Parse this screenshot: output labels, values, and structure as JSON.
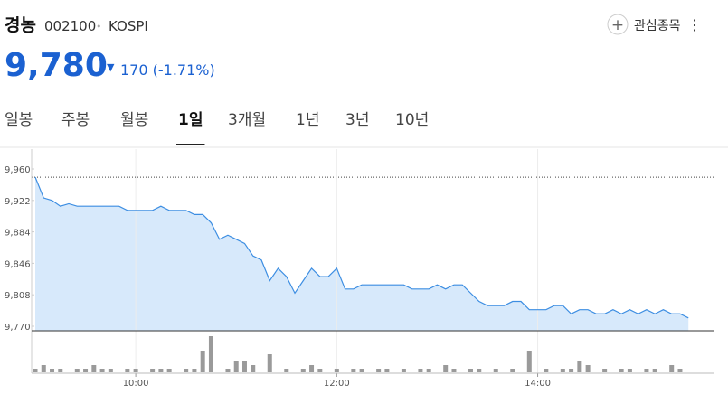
{
  "header": {
    "name": "경농",
    "code": "002100",
    "separator": "•",
    "market": "KOSPI",
    "watch_icon": "+",
    "watch_button": "관심종목",
    "menu_icon": "⋮",
    "price": "9,780",
    "change_arrow": "▼",
    "change": "170 (-1.71%)"
  },
  "tabs": [
    "일봉",
    "주봉",
    "월봉",
    "1일",
    "3개월",
    "1년",
    "3년",
    "10년"
  ],
  "selected_tab": 3,
  "chart_data": {
    "type": "line",
    "x": [
      "09:00",
      "09:05",
      "09:10",
      "09:15",
      "09:20",
      "09:25",
      "09:30",
      "09:35",
      "09:40",
      "09:45",
      "09:50",
      "09:55",
      "10:00",
      "10:05",
      "10:10",
      "10:15",
      "10:20",
      "10:25",
      "10:30",
      "10:35",
      "10:40",
      "10:45",
      "10:50",
      "10:55",
      "11:00",
      "11:05",
      "11:10",
      "11:15",
      "11:20",
      "11:25",
      "11:30",
      "11:35",
      "11:40",
      "11:45",
      "11:50",
      "11:55",
      "12:00",
      "12:05",
      "12:10",
      "12:15",
      "12:20",
      "12:25",
      "12:30",
      "12:35",
      "12:40",
      "12:45",
      "12:50",
      "12:55",
      "13:00",
      "13:05",
      "13:10",
      "13:15",
      "13:20",
      "13:25",
      "13:30",
      "13:35",
      "13:40",
      "13:45",
      "13:50",
      "13:55",
      "14:00",
      "14:05",
      "14:10",
      "14:15",
      "14:20",
      "14:25",
      "14:30",
      "14:35",
      "14:40",
      "14:45",
      "14:50",
      "14:55",
      "15:00",
      "15:05",
      "15:10",
      "15:15",
      "15:20",
      "15:25",
      "15:30"
    ],
    "series": [
      {
        "color": "#3d8ee2",
        "fill": "#d7e9fb",
        "values": [
          9950,
          9925,
          9922,
          9915,
          9918,
          9915,
          9915,
          9915,
          9915,
          9915,
          9915,
          9910,
          9910,
          9910,
          9910,
          9915,
          9910,
          9910,
          9910,
          9905,
          9905,
          9895,
          9875,
          9880,
          9875,
          9870,
          9855,
          9850,
          9825,
          9840,
          9830,
          9810,
          9825,
          9840,
          9830,
          9830,
          9840,
          9815,
          9815,
          9820,
          9820,
          9820,
          9820,
          9820,
          9820,
          9815,
          9815,
          9815,
          9820,
          9815,
          9820,
          9820,
          9810,
          9800,
          9795,
          9795,
          9795,
          9800,
          9800,
          9790,
          9790,
          9790,
          9795,
          9795,
          9785,
          9790,
          9790,
          9785,
          9785,
          9790,
          9785,
          9790,
          9785,
          9790,
          9785,
          9790,
          9785,
          9785,
          9780
        ]
      }
    ],
    "volume": {
      "color": "#9a9a9a",
      "ylim": [
        0,
        10
      ],
      "values": [
        1,
        2,
        1,
        1,
        0,
        1,
        1,
        2,
        1,
        1,
        0,
        1,
        1,
        0,
        1,
        1,
        1,
        0,
        1,
        1,
        6,
        10,
        0,
        1,
        3,
        3,
        2,
        0,
        5,
        0,
        1,
        0,
        1,
        2,
        1,
        0,
        1,
        0,
        1,
        1,
        0,
        1,
        1,
        0,
        1,
        0,
        1,
        1,
        0,
        2,
        1,
        0,
        1,
        1,
        0,
        1,
        0,
        1,
        0,
        6,
        0,
        1,
        0,
        1,
        1,
        3,
        2,
        0,
        1,
        0,
        1,
        1,
        0,
        1,
        1,
        0,
        2,
        1,
        0
      ]
    },
    "reference_line": 9950,
    "xlim": [
      "09:00",
      "15:45"
    ],
    "xticks": [
      "10:00",
      "12:00",
      "14:00"
    ],
    "ylim": [
      9770,
      9960
    ],
    "yticks": [
      {
        "value": 9770,
        "label": "9,770"
      },
      {
        "value": 9808,
        "label": "9,808"
      },
      {
        "value": 9846,
        "label": "9,846"
      },
      {
        "value": 9884,
        "label": "9,884"
      },
      {
        "value": 9922,
        "label": "9,922"
      },
      {
        "value": 9960,
        "label": "9,960"
      }
    ],
    "grid": true
  }
}
